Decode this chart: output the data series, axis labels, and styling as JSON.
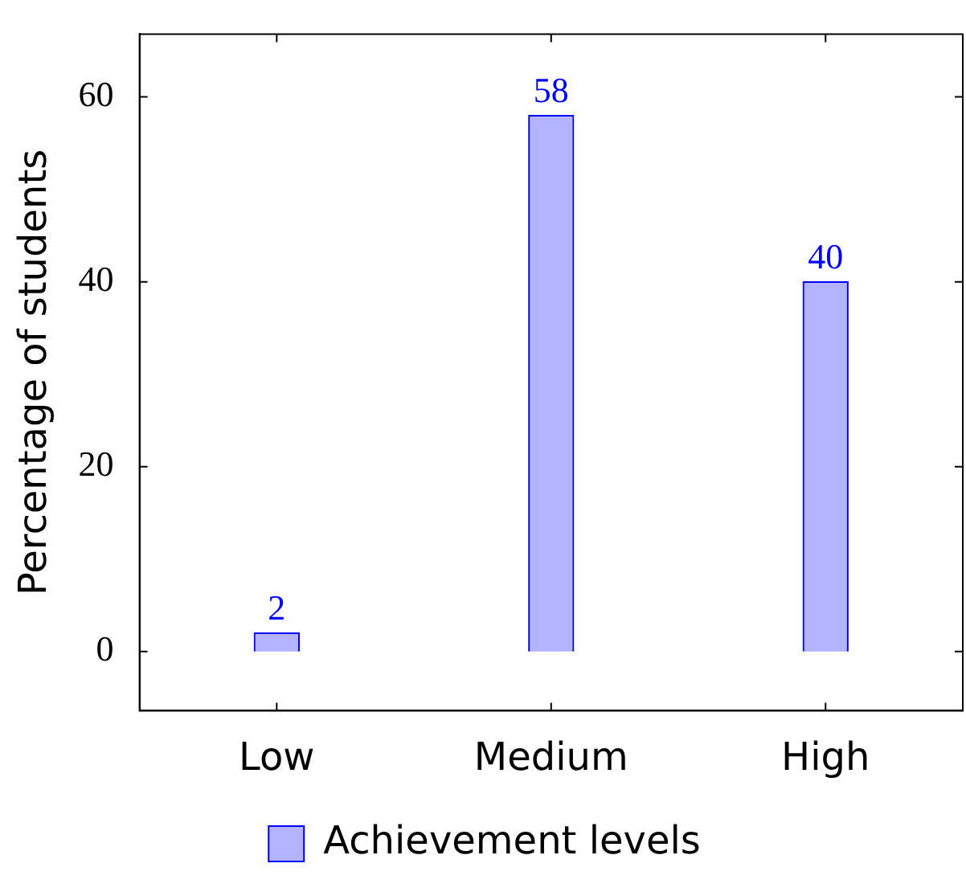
{
  "chart_data": {
    "type": "bar",
    "ylabel": "Percentage of students",
    "categories": [
      "Low",
      "Medium",
      "High"
    ],
    "series": [
      {
        "name": "Achievement levels",
        "color": "#b3b3ff",
        "values": [
          2,
          58,
          40
        ]
      }
    ],
    "ylim": [
      -6.4,
      66.8
    ],
    "yticks": [
      0,
      20,
      40,
      60
    ],
    "data_labels": true,
    "legend": "bottom",
    "grid": false
  }
}
